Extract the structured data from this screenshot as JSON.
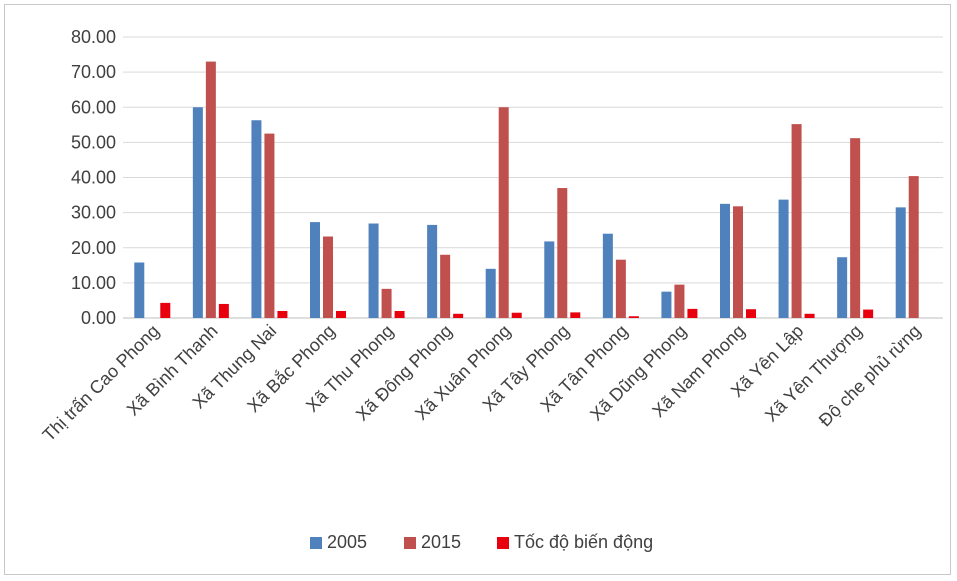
{
  "chart_data": {
    "type": "bar",
    "categories": [
      "Thị trấn Cao Phong",
      "Xã Bình Thanh",
      "Xã Thung Nai",
      "Xã Bắc Phong",
      "Xã Thu Phong",
      "Xã Đông Phong",
      "Xã Xuân Phong",
      "Xã Tây Phong",
      "Xã Tân Phong",
      "Xã Dũng Phong",
      "Xã Nam Phong",
      "Xã Yên Lập",
      "Xã Yên Thượng",
      "Độ che phủ rừng"
    ],
    "series": [
      {
        "name": "2005",
        "color": "#4f81bd",
        "values": [
          15.8,
          60.0,
          56.3,
          27.3,
          26.9,
          26.5,
          14.0,
          21.8,
          24.0,
          7.5,
          32.5,
          33.7,
          17.3,
          31.5
        ]
      },
      {
        "name": "2015",
        "color": "#c0504d",
        "values": [
          0,
          73.0,
          52.5,
          23.2,
          8.3,
          18.0,
          60.0,
          37.0,
          16.6,
          9.5,
          31.8,
          55.2,
          51.2,
          40.4
        ]
      },
      {
        "name": "Tốc độ biến động",
        "color": "#e8000f",
        "values": [
          4.3,
          4.0,
          2.0,
          2.0,
          2.0,
          1.2,
          1.5,
          1.6,
          0.5,
          2.6,
          2.5,
          1.2,
          2.4,
          0
        ]
      }
    ],
    "yticks": [
      "0.00",
      "10.00",
      "20.00",
      "30.00",
      "40.00",
      "50.00",
      "60.00",
      "70.00",
      "80.00"
    ],
    "ylim": [
      0,
      80
    ],
    "grid": true,
    "legend": "bottom"
  }
}
